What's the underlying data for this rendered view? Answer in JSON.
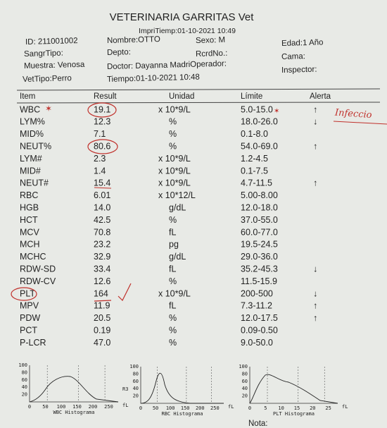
{
  "header": {
    "title": "VETERINARIA GARRITAS Vet",
    "print_time": "ImpriTiemp:01-10-2021 10:49"
  },
  "info": [
    {
      "text": "ID: 211001002"
    },
    {
      "text": "Nombre:OTTO"
    },
    {
      "text": "Sexo: M"
    },
    {
      "text": "Edad:1 Año"
    },
    {
      "text": "SangrTipo:"
    },
    {
      "text": "Depto:"
    },
    {
      "text": "RcrdNo.:"
    },
    {
      "text": "Cama:"
    },
    {
      "text": "Muestra: Venosa"
    },
    {
      "text": "Doctor: Dayanna MadriOperador:"
    },
    {
      "text": "Inspector:"
    },
    {
      "text": "VetTipo:Perro"
    },
    {
      "text": "Tiempo:01-10-2021 10:48"
    }
  ],
  "table": {
    "columns": [
      "Item",
      "Result",
      "Unidad",
      "Límite",
      "Alerta"
    ],
    "rows": [
      [
        "WBC",
        "19.1",
        "x 10*9/L",
        "5.0-15.0",
        "↑"
      ],
      [
        "LYM%",
        "12.3",
        "%",
        "18.0-26.0",
        "↓"
      ],
      [
        "MID%",
        "7.1",
        "%",
        "0.1-8.0",
        null
      ],
      [
        "NEUT%",
        "80.6",
        "%",
        "54.0-69.0",
        "↑"
      ],
      [
        "LYM#",
        "2.3",
        "x 10*9/L",
        "1.2-4.5",
        null
      ],
      [
        "MID#",
        "1.4",
        "x 10*9/L",
        "0.1-7.5",
        null
      ],
      [
        "NEUT#",
        "15.4",
        "x 10*9/L",
        "4.7-11.5",
        "↑"
      ],
      [
        "RBC",
        "6.01",
        "x 10*12/L",
        "5.00-8.00",
        null
      ],
      [
        "HGB",
        "14.0",
        "g/dL",
        "12.0-18.0",
        null
      ],
      [
        "HCT",
        "42.5",
        "%",
        "37.0-55.0",
        null
      ],
      [
        "MCV",
        "70.8",
        "fL",
        "60.0-77.0",
        null
      ],
      [
        "MCH",
        "23.2",
        "pg",
        "19.5-24.5",
        null
      ],
      [
        "MCHC",
        "32.9",
        "g/dL",
        "29.0-36.0",
        null
      ],
      [
        "RDW-SD",
        "33.4",
        "fL",
        "35.2-45.3",
        "↓"
      ],
      [
        "RDW-CV",
        "12.6",
        "%",
        "11.5-15.9",
        null
      ],
      [
        "PLT",
        "164",
        "x 10*9/L",
        "200-500",
        "↓"
      ],
      [
        "MPV",
        "11.9",
        "fL",
        "7.3-11.2",
        "↑"
      ],
      [
        "PDW",
        "20.5",
        "%",
        "12.0-17.5",
        "↑"
      ],
      [
        "PCT",
        "0.19",
        "%",
        "0.09-0.50",
        null
      ],
      [
        "P-LCR",
        "47.0",
        "%",
        "9.0-50.0",
        null
      ]
    ]
  },
  "annotation": "Infeccio",
  "histograms": [
    {
      "title": "WBC Histograma",
      "yticks": [
        "100",
        "80",
        "60",
        "40",
        "20"
      ],
      "xticks": [
        "0",
        "50",
        "100",
        "150",
        "200",
        "250"
      ],
      "unit": "fL"
    },
    {
      "title": "RBC Histograma",
      "label": "R3",
      "yticks": [
        "100",
        "80",
        "60",
        "40",
        "20"
      ],
      "xticks": [
        "0",
        "50",
        "100",
        "150",
        "200",
        "250"
      ],
      "unit": "fL"
    },
    {
      "title": "PLT Histograma",
      "yticks": [
        "100",
        "80",
        "60",
        "40",
        "20"
      ],
      "xticks": [
        "0",
        "5",
        "10",
        "15",
        "20",
        "25"
      ],
      "unit": "fL"
    }
  ],
  "footer": "Nota:"
}
